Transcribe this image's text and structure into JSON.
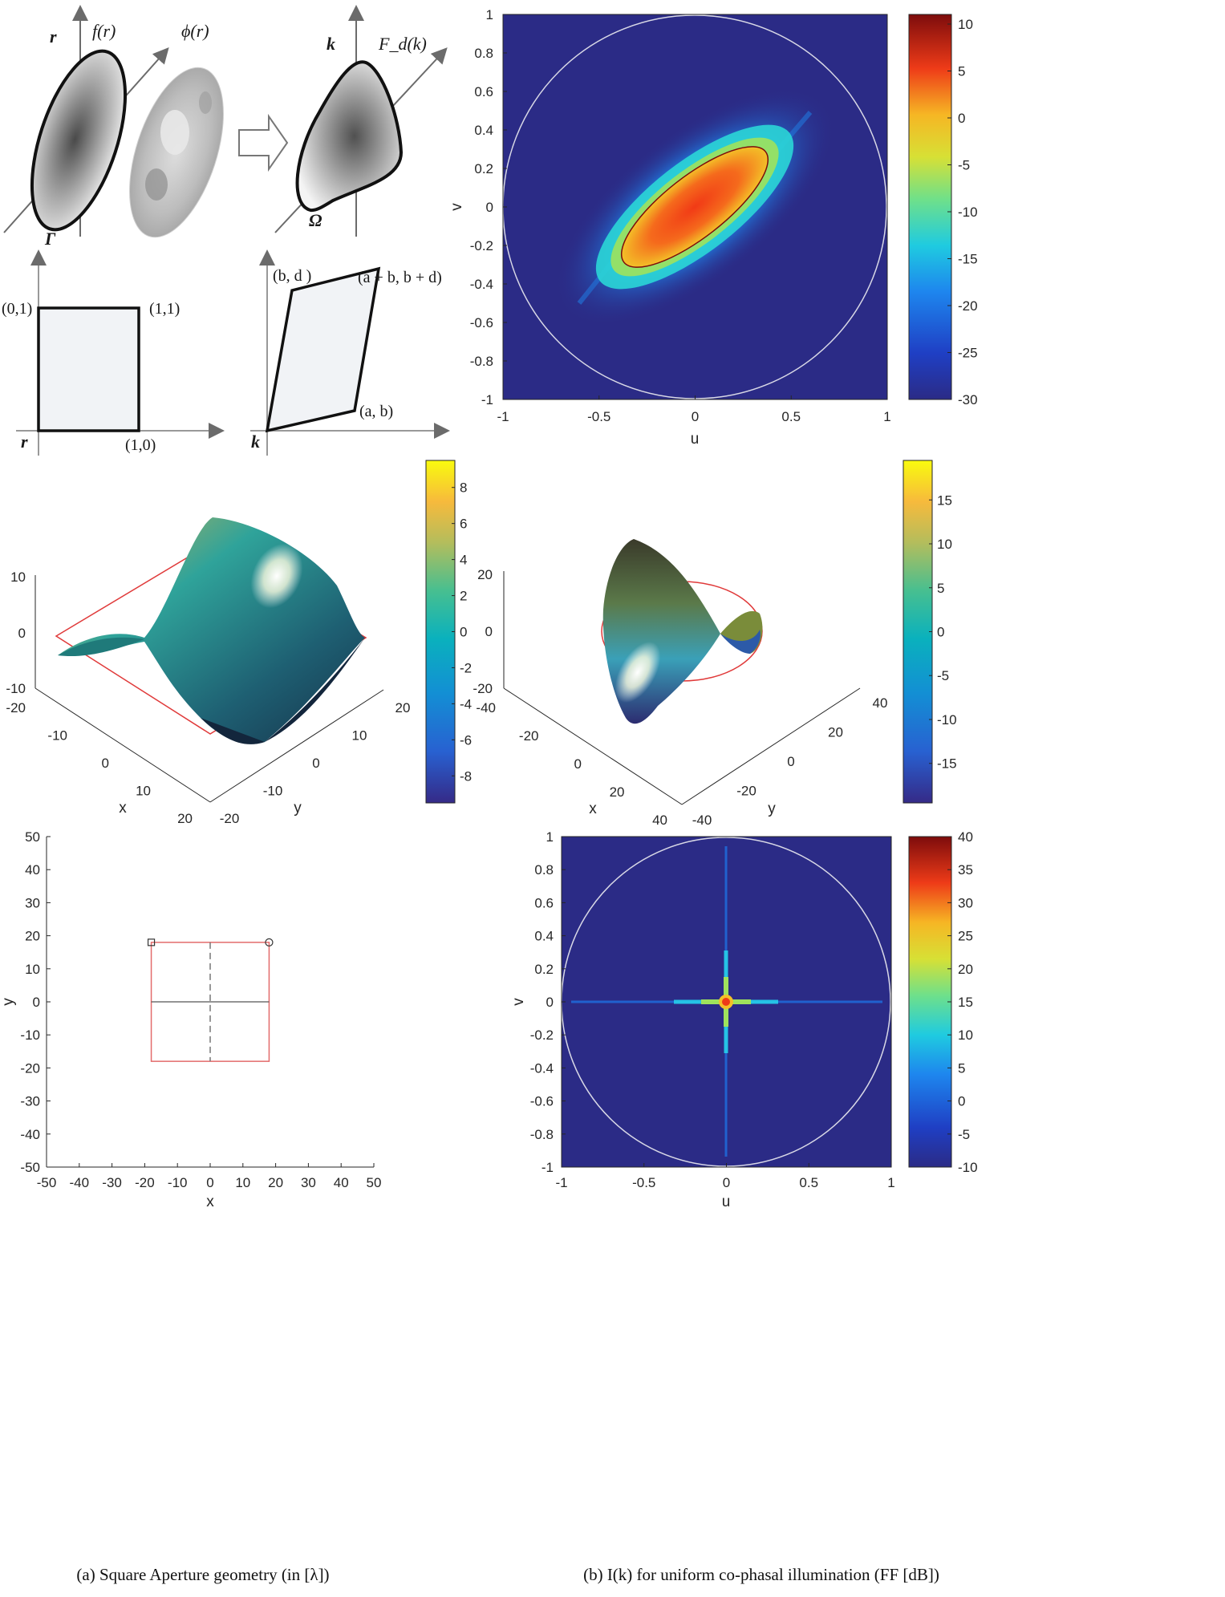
{
  "diagram": {
    "labels": {
      "r_top": "r",
      "f_r": "f(r)",
      "phi_r": "ϕ(r)",
      "gamma": "Γ",
      "k_top": "k",
      "Fd_k": "F_d(k)",
      "omega": "Ω",
      "r_bottom": "r",
      "k_bottom": "k"
    },
    "square_corners": [
      "(0,1)",
      "(1,1)",
      "(1,0)"
    ],
    "parallelogram_corners": [
      "(b, d )",
      "(a + b, b + d)",
      "(a, b)"
    ]
  },
  "chart_data": [
    {
      "type": "heatmap",
      "panel": "top-right",
      "xlabel": "u",
      "ylabel": "v",
      "xlim": [
        -1,
        1
      ],
      "ylim": [
        -1,
        1
      ],
      "xticks": [
        "-1",
        "-0.5",
        "0",
        "0.5",
        "1"
      ],
      "yticks": [
        "1",
        "0.8",
        "0.6",
        "0.4",
        "0.2",
        "0",
        "-0.2",
        "-0.4",
        "-0.6",
        "-0.8",
        "-1"
      ],
      "colorbar_range": [
        -30,
        10
      ],
      "colorbar_ticks": [
        "10",
        "5",
        "0",
        "-5",
        "-10",
        "-15",
        "-20",
        "-25",
        "-30"
      ],
      "main_lobe_orientation_deg": -40,
      "visible_region_circle_radius": 1
    },
    {
      "type": "surface",
      "panel": "middle-left",
      "xlabel": "x",
      "ylabel": "y",
      "xticks": [
        "-20",
        "-10",
        "0",
        "10",
        "20"
      ],
      "yticks": [
        "20",
        "10",
        "0",
        "-10",
        "-20"
      ],
      "zticks": [
        "10",
        "0",
        "-10"
      ],
      "colorbar_range": [
        -9.5,
        9.5
      ],
      "colorbar_ticks": [
        "8",
        "6",
        "4",
        "2",
        "0",
        "-2",
        "-4",
        "-6",
        "-8"
      ]
    },
    {
      "type": "surface",
      "panel": "middle-right",
      "xlabel": "x",
      "ylabel": "y",
      "xticks": [
        "-40",
        "-20",
        "0",
        "20",
        "40"
      ],
      "yticks": [
        "40",
        "20",
        "0",
        "-20",
        "-40"
      ],
      "zticks": [
        "20",
        "0",
        "-20"
      ],
      "colorbar_range": [
        -19.5,
        19.5
      ],
      "colorbar_ticks": [
        "15",
        "10",
        "5",
        "0",
        "-5",
        "-10",
        "-15"
      ]
    },
    {
      "type": "scatter",
      "panel": "bottom-left",
      "xlabel": "x",
      "ylabel": "y",
      "xlim": [
        -50,
        50
      ],
      "ylim": [
        -50,
        50
      ],
      "xticks": [
        "-50",
        "-40",
        "-30",
        "-20",
        "-10",
        "0",
        "10",
        "20",
        "30",
        "40",
        "50"
      ],
      "yticks": [
        "50",
        "40",
        "30",
        "20",
        "10",
        "0",
        "-10",
        "-20",
        "-30",
        "-40",
        "-50"
      ],
      "square_half_side": 18,
      "markers": [
        {
          "shape": "square",
          "x": -18,
          "y": 18
        },
        {
          "shape": "circle",
          "x": 18,
          "y": 18
        }
      ]
    },
    {
      "type": "heatmap",
      "panel": "bottom-right",
      "xlabel": "u",
      "ylabel": "v",
      "xlim": [
        -1,
        1
      ],
      "ylim": [
        -1,
        1
      ],
      "xticks": [
        "-1",
        "-0.5",
        "0",
        "0.5",
        "1"
      ],
      "yticks": [
        "1",
        "0.8",
        "0.6",
        "0.4",
        "0.2",
        "0",
        "-0.2",
        "-0.4",
        "-0.6",
        "-0.8",
        "-1"
      ],
      "colorbar_range": [
        -10,
        40
      ],
      "colorbar_ticks": [
        "40",
        "35",
        "30",
        "25",
        "20",
        "15",
        "10",
        "5",
        "0",
        "-5",
        "-10"
      ],
      "visible_region_circle_radius": 1
    }
  ],
  "captions": {
    "a": "(a) Square Aperture geometry (in [λ])",
    "b": "(b) I(k) for uniform co-phasal illumination (FF [dB])"
  }
}
